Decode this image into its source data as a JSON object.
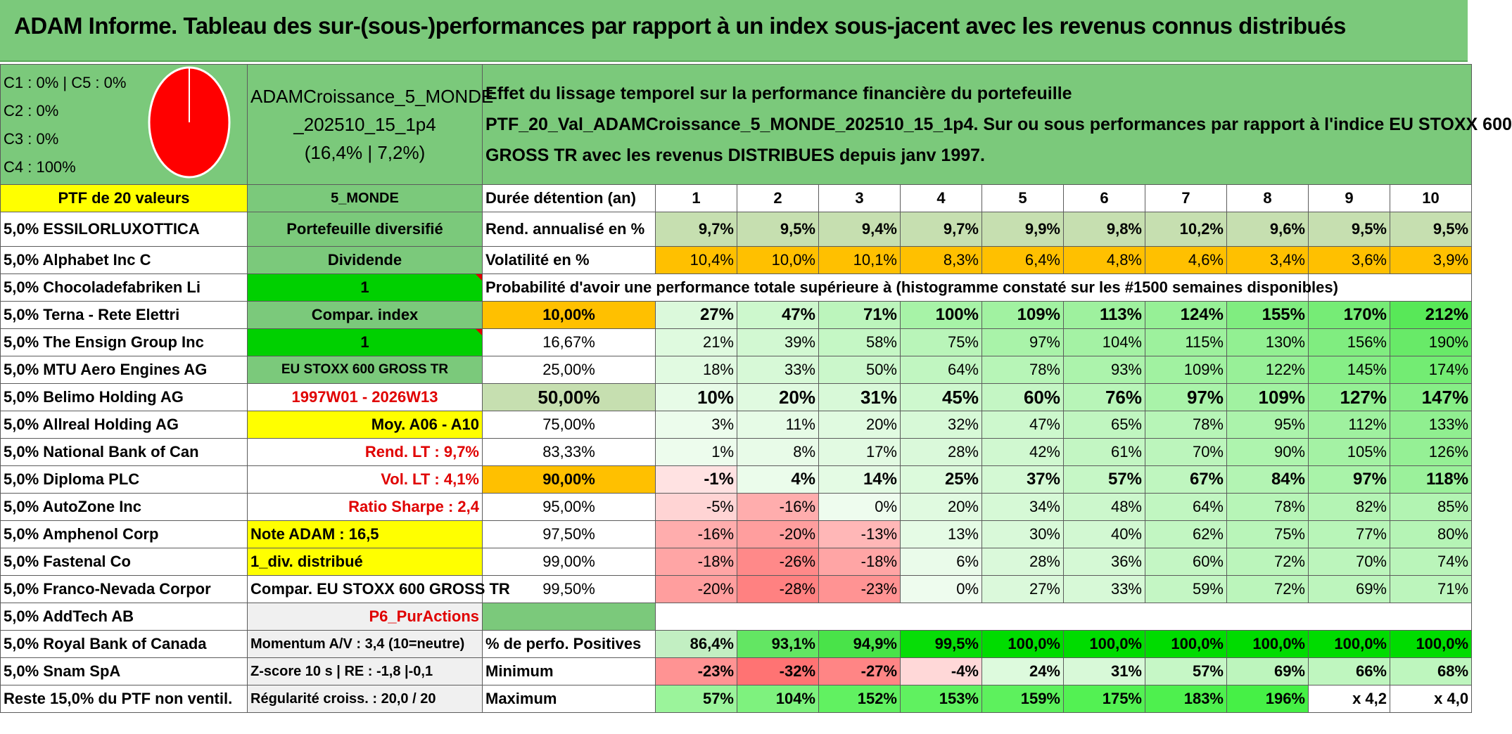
{
  "title": "ADAM Informe. Tableau des sur-(sous-)performances par rapport à un index sous-jacent avec les revenus connus distribués",
  "legend": {
    "line1": "C1 : 0% | C5 : 0%",
    "line2": "C2 : 0%",
    "line3": "C3 : 0%",
    "line4": "C4 : 100%"
  },
  "portfolio": {
    "name_a": "ADAMCroissance_5_MONDE",
    "name_b": "_202510_15_1p4",
    "name_c": "(16,4% | 7,2%)"
  },
  "description": {
    "line1": "Effet du lissage temporel sur la performance financière du portefeuille",
    "line2": "PTF_20_Val_ADAMCroissance_5_MONDE_202510_15_1p4. Sur ou sous performances par rapport à l'indice EU STOXX 600",
    "line3": "GROSS TR avec les revenus DISTRIBUES depuis janv 1997."
  },
  "ptf_header": "PTF de 20 valeurs",
  "holdings": [
    "5,0% ESSILORLUXOTTICA",
    "5,0% Alphabet Inc C",
    "5,0% Chocoladefabriken Li",
    "5,0% Terna - Rete Elettri",
    "5,0% The Ensign Group Inc",
    "5,0% MTU Aero Engines AG",
    "5,0% Belimo Holding AG",
    "5,0% Allreal Holding AG",
    "5,0% National Bank of Can",
    "5,0% Diploma PLC",
    "5,0% AutoZone Inc",
    "5,0% Amphenol Corp",
    "5,0% Fastenal Co",
    "5,0% Franco-Nevada Corpor",
    "5,0% AddTech AB",
    "5,0% Royal Bank of Canada",
    "5,0% Snam SpA",
    "Reste 15,0% du PTF non ventil."
  ],
  "info": {
    "zone": "5_MONDE",
    "type": "Portefeuille diversifié",
    "dividend_label": "Dividende",
    "dividend_value": "1",
    "compar_label": "Compar. index",
    "compar_value": "1",
    "index": "EU STOXX 600 GROSS TR",
    "period": "1997W01 - 2026W13",
    "avg": "Moy. A06 - A10",
    "rend_lt": "Rend. LT : 9,7%",
    "vol_lt": "Vol. LT : 4,1%",
    "sharpe": "Ratio Sharpe : 2,4",
    "note": "Note ADAM : 16,5",
    "div": "1_div. distribué",
    "compar_full": "Compar. EU STOXX 600 GROSS TR",
    "code": "P6_PurActions",
    "momentum": "Momentum A/V : 3,4 (10=neutre)",
    "zscore": "Z-score 10 s | RE : -1,8 |-0,1",
    "regularity": "Régularité croiss. : 20,0 / 20"
  },
  "metrics": {
    "duration_label": "Durée détention (an)",
    "years": [
      "1",
      "2",
      "3",
      "4",
      "5",
      "6",
      "7",
      "8",
      "9",
      "10"
    ],
    "rend_label": "Rend. annualisé en %",
    "rend": [
      "9,7%",
      "9,5%",
      "9,4%",
      "9,7%",
      "9,9%",
      "9,8%",
      "10,2%",
      "9,6%",
      "9,5%",
      "9,5%"
    ],
    "vol_label": "Volatilité en %",
    "vol": [
      "10,4%",
      "10,0%",
      "10,1%",
      "8,3%",
      "6,4%",
      "4,8%",
      "4,6%",
      "3,4%",
      "3,6%",
      "3,9%"
    ],
    "prob_title": "Probabilité d'avoir une performance totale supérieure à (histogramme constaté sur les #1500 semaines disponibles)"
  },
  "probability_rows": [
    {
      "p": "10,00%",
      "v": [
        "27%",
        "47%",
        "71%",
        "100%",
        "109%",
        "113%",
        "124%",
        "155%",
        "170%",
        "212%"
      ]
    },
    {
      "p": "16,67%",
      "v": [
        "21%",
        "39%",
        "58%",
        "75%",
        "97%",
        "104%",
        "115%",
        "130%",
        "156%",
        "190%"
      ]
    },
    {
      "p": "25,00%",
      "v": [
        "18%",
        "33%",
        "50%",
        "64%",
        "78%",
        "93%",
        "109%",
        "122%",
        "145%",
        "174%"
      ]
    },
    {
      "p": "50,00%",
      "v": [
        "10%",
        "20%",
        "31%",
        "45%",
        "60%",
        "76%",
        "97%",
        "109%",
        "127%",
        "147%"
      ]
    },
    {
      "p": "75,00%",
      "v": [
        "3%",
        "11%",
        "20%",
        "32%",
        "47%",
        "65%",
        "78%",
        "95%",
        "112%",
        "133%"
      ]
    },
    {
      "p": "83,33%",
      "v": [
        "1%",
        "8%",
        "17%",
        "28%",
        "42%",
        "61%",
        "70%",
        "90%",
        "105%",
        "126%"
      ]
    },
    {
      "p": "90,00%",
      "v": [
        "-1%",
        "4%",
        "14%",
        "25%",
        "37%",
        "57%",
        "67%",
        "84%",
        "97%",
        "118%"
      ]
    },
    {
      "p": "95,00%",
      "v": [
        "-5%",
        "-16%",
        "0%",
        "20%",
        "34%",
        "48%",
        "64%",
        "78%",
        "82%",
        "85%"
      ]
    },
    {
      "p": "97,50%",
      "v": [
        "-16%",
        "-20%",
        "-13%",
        "13%",
        "30%",
        "40%",
        "62%",
        "75%",
        "77%",
        "80%"
      ]
    },
    {
      "p": "99,00%",
      "v": [
        "-18%",
        "-26%",
        "-18%",
        "6%",
        "28%",
        "36%",
        "60%",
        "72%",
        "70%",
        "74%"
      ]
    },
    {
      "p": "99,50%",
      "v": [
        "-20%",
        "-28%",
        "-23%",
        "0%",
        "27%",
        "33%",
        "59%",
        "72%",
        "69%",
        "71%"
      ]
    }
  ],
  "summary": {
    "pos_label": "% de perfo. Positives",
    "pos": [
      "86,4%",
      "93,1%",
      "94,9%",
      "99,5%",
      "100,0%",
      "100,0%",
      "100,0%",
      "100,0%",
      "100,0%",
      "100,0%"
    ],
    "min_label": "Minimum",
    "min": [
      "-23%",
      "-32%",
      "-27%",
      "-4%",
      "24%",
      "31%",
      "57%",
      "69%",
      "66%",
      "68%"
    ],
    "max_label": "Maximum",
    "max": [
      "57%",
      "104%",
      "152%",
      "153%",
      "159%",
      "175%",
      "183%",
      "196%",
      "x 4,2",
      "x 4,0"
    ]
  },
  "colors": {
    "banner": "#7bc97b",
    "yellow": "#ffff00",
    "orange": "#ffc000",
    "bright_green": "#00d000",
    "pie": "#ff0000"
  }
}
